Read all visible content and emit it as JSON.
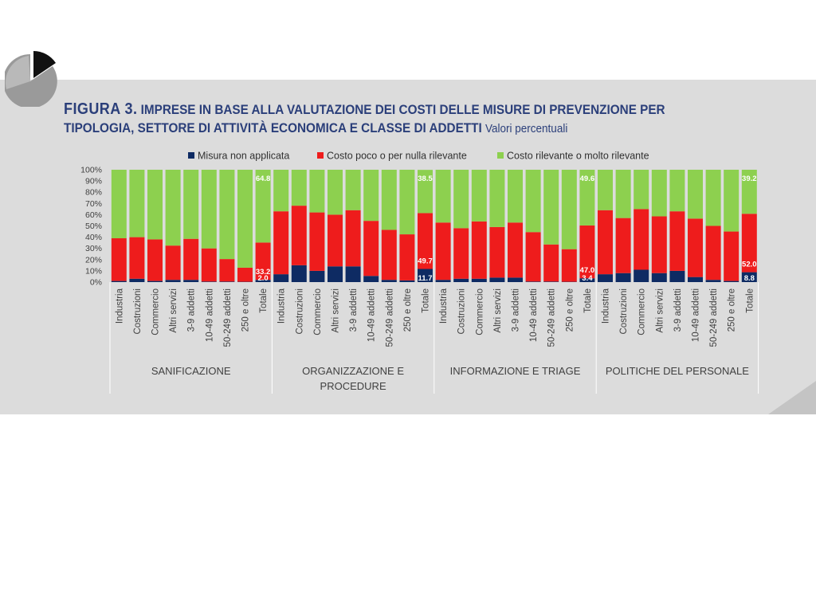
{
  "header": {
    "figure_label": "FIGURA 3.",
    "title_line1": "IMPRESE IN BASE ALLA VALUTAZIONE DEI COSTI DELLE MISURE DI PREVENZIONE PER",
    "title_line2": "TIPOLOGIA, SETTORE DI ATTIVITÀ ECONOMICA E CLASSE DI ADDETTI",
    "subtitle": "Valori percentuali"
  },
  "colors": {
    "band": "#dcdcdc",
    "title": "#2b3f7a",
    "series": [
      "#0e2b63",
      "#ee1c1c",
      "#8dd04f"
    ]
  },
  "icons": {
    "logo": "pie-chart-icon",
    "decoration": "corner-triangle-icon"
  },
  "chart_data": {
    "type": "bar",
    "stacked": true,
    "ylim": [
      0,
      100
    ],
    "yticks": [
      "0%",
      "10%",
      "20%",
      "30%",
      "40%",
      "50%",
      "60%",
      "70%",
      "80%",
      "90%",
      "100%"
    ],
    "legend": [
      "Misura non applicata",
      "Costo poco o per nulla rilevante",
      "Costo rilevante o molto rilevante"
    ],
    "legend_position": "top",
    "categories": [
      "Industria",
      "Costruzioni",
      "Commercio",
      "Altri servizi",
      "3-9 addetti",
      "10-49 addetti",
      "50-249 addetti",
      "250 e oltre",
      "Totale"
    ],
    "groups": [
      {
        "name": "SANIFICAZIONE",
        "series": [
          {
            "name": "Misura non applicata",
            "values": [
              1.0,
              3.0,
              1.0,
              2.0,
              2.0,
              0.5,
              0.5,
              0.3,
              2.0
            ]
          },
          {
            "name": "Costo poco o per nulla rilevante",
            "values": [
              38.0,
              37.0,
              37.0,
              30.5,
              36.5,
              29.5,
              20.0,
              12.5,
              33.2
            ]
          },
          {
            "name": "Costo rilevante o molto rilevante",
            "values": [
              61.0,
              60.0,
              62.0,
              67.5,
              61.5,
              70.0,
              79.5,
              87.2,
              64.8
            ]
          }
        ],
        "labels": [
          "2.0",
          "33.2",
          "64.8"
        ]
      },
      {
        "name": "ORGANIZZAZIONE E PROCEDURE",
        "series": [
          {
            "name": "Misura non applicata",
            "values": [
              7.0,
              15.0,
              10.0,
              14.0,
              14.0,
              5.5,
              2.0,
              1.5,
              11.7
            ]
          },
          {
            "name": "Costo poco o per nulla rilevante",
            "values": [
              56.0,
              53.0,
              52.0,
              46.0,
              50.0,
              49.0,
              44.5,
              41.0,
              49.7
            ]
          },
          {
            "name": "Costo rilevante o molto rilevante",
            "values": [
              37.0,
              32.0,
              38.0,
              40.0,
              36.0,
              45.5,
              53.5,
              57.5,
              38.5
            ]
          }
        ],
        "labels": [
          "11.7",
          "49.7",
          "38.5"
        ]
      },
      {
        "name": "INFORMAZIONE E TRIAGE",
        "series": [
          {
            "name": "Misura non applicata",
            "values": [
              2.0,
              3.0,
              3.0,
              4.0,
              4.0,
              0.5,
              0.5,
              0.3,
              3.4
            ]
          },
          {
            "name": "Costo poco o per nulla rilevante",
            "values": [
              51.0,
              45.0,
              51.0,
              45.0,
              49.0,
              44.0,
              33.0,
              29.0,
              47.0
            ]
          },
          {
            "name": "Costo rilevante o molto rilevante",
            "values": [
              47.0,
              52.0,
              46.0,
              51.0,
              47.0,
              55.5,
              66.5,
              70.7,
              49.6
            ]
          }
        ],
        "labels": [
          "3.4",
          "47.0",
          "49.6"
        ]
      },
      {
        "name": "POLITICHE DEL PERSONALE",
        "series": [
          {
            "name": "Misura non applicata",
            "values": [
              7.0,
              8.0,
              11.0,
              8.0,
              10.0,
              4.5,
              2.0,
              1.0,
              8.8
            ]
          },
          {
            "name": "Costo poco o per nulla rilevante",
            "values": [
              57.0,
              49.0,
              54.0,
              50.5,
              53.0,
              52.0,
              48.0,
              44.0,
              52.0
            ]
          },
          {
            "name": "Costo rilevante o molto rilevante",
            "values": [
              36.0,
              43.0,
              35.0,
              41.5,
              37.0,
              43.5,
              50.0,
              55.0,
              39.2
            ]
          }
        ],
        "labels": [
          "8.8",
          "52.0",
          "39.2"
        ]
      }
    ]
  }
}
